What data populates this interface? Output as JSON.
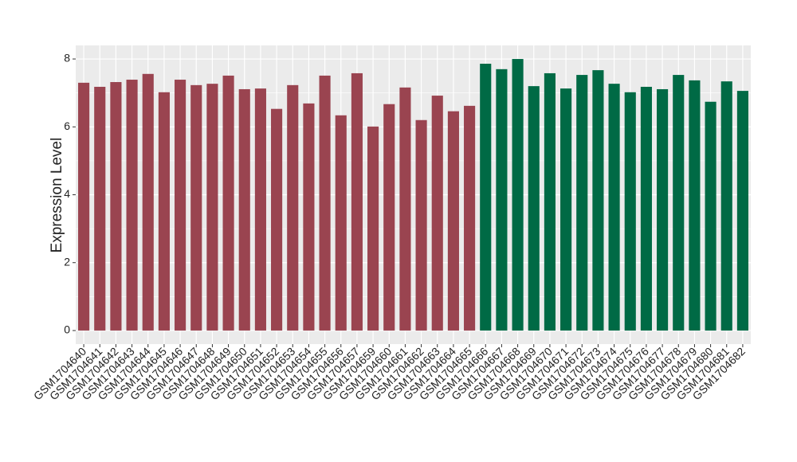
{
  "chart_data": {
    "type": "bar",
    "y_label": "Expression Level",
    "categories": [
      "GSM1704640",
      "GSM1704641",
      "GSM1704642",
      "GSM1704643",
      "GSM1704644",
      "GSM1704645",
      "GSM1704646",
      "GSM1704647",
      "GSM1704648",
      "GSM1704649",
      "GSM1704650",
      "GSM1704651",
      "GSM1704652",
      "GSM1704653",
      "GSM1704654",
      "GSM1704655",
      "GSM1704656",
      "GSM1704657",
      "GSM1704659",
      "GSM1704660",
      "GSM1704661",
      "GSM1704662",
      "GSM1704663",
      "GSM1704664",
      "GSM1704665",
      "GSM1704666",
      "GSM1704667",
      "GSM1704668",
      "GSM1704669",
      "GSM1704670",
      "GSM1704671",
      "GSM1704672",
      "GSM1704673",
      "GSM1704674",
      "GSM1704675",
      "GSM1704676",
      "GSM1704677",
      "GSM1704678",
      "GSM1704679",
      "GSM1704680",
      "GSM1704681",
      "GSM1704682"
    ],
    "values": [
      7.3,
      7.18,
      7.32,
      7.39,
      7.56,
      7.02,
      7.39,
      7.23,
      7.27,
      7.51,
      7.11,
      7.13,
      6.53,
      7.23,
      6.69,
      7.51,
      6.34,
      7.58,
      6.01,
      6.67,
      7.16,
      6.2,
      6.92,
      6.46,
      6.62,
      7.86,
      7.7,
      8.0,
      7.2,
      7.58,
      7.13,
      7.53,
      7.67,
      7.27,
      7.02,
      7.18,
      7.11,
      7.53,
      7.37,
      6.74,
      7.34,
      7.06
    ],
    "colors": [
      "#9a4450",
      "#9a4450",
      "#9a4450",
      "#9a4450",
      "#9a4450",
      "#9a4450",
      "#9a4450",
      "#9a4450",
      "#9a4450",
      "#9a4450",
      "#9a4450",
      "#9a4450",
      "#9a4450",
      "#9a4450",
      "#9a4450",
      "#9a4450",
      "#9a4450",
      "#9a4450",
      "#9a4450",
      "#9a4450",
      "#9a4450",
      "#9a4450",
      "#9a4450",
      "#9a4450",
      "#9a4450",
      "#006a45",
      "#006a45",
      "#006a45",
      "#006a45",
      "#006a45",
      "#006a45",
      "#006a45",
      "#006a45",
      "#006a45",
      "#006a45",
      "#006a45",
      "#006a45",
      "#006a45",
      "#006a45",
      "#006a45",
      "#006a45",
      "#006a45"
    ],
    "ylim": [
      -0.4,
      8.4
    ],
    "yticks": [
      0,
      2,
      4,
      6,
      8
    ],
    "yminor_ticks": [
      1,
      3,
      5,
      7
    ],
    "grid": true
  }
}
